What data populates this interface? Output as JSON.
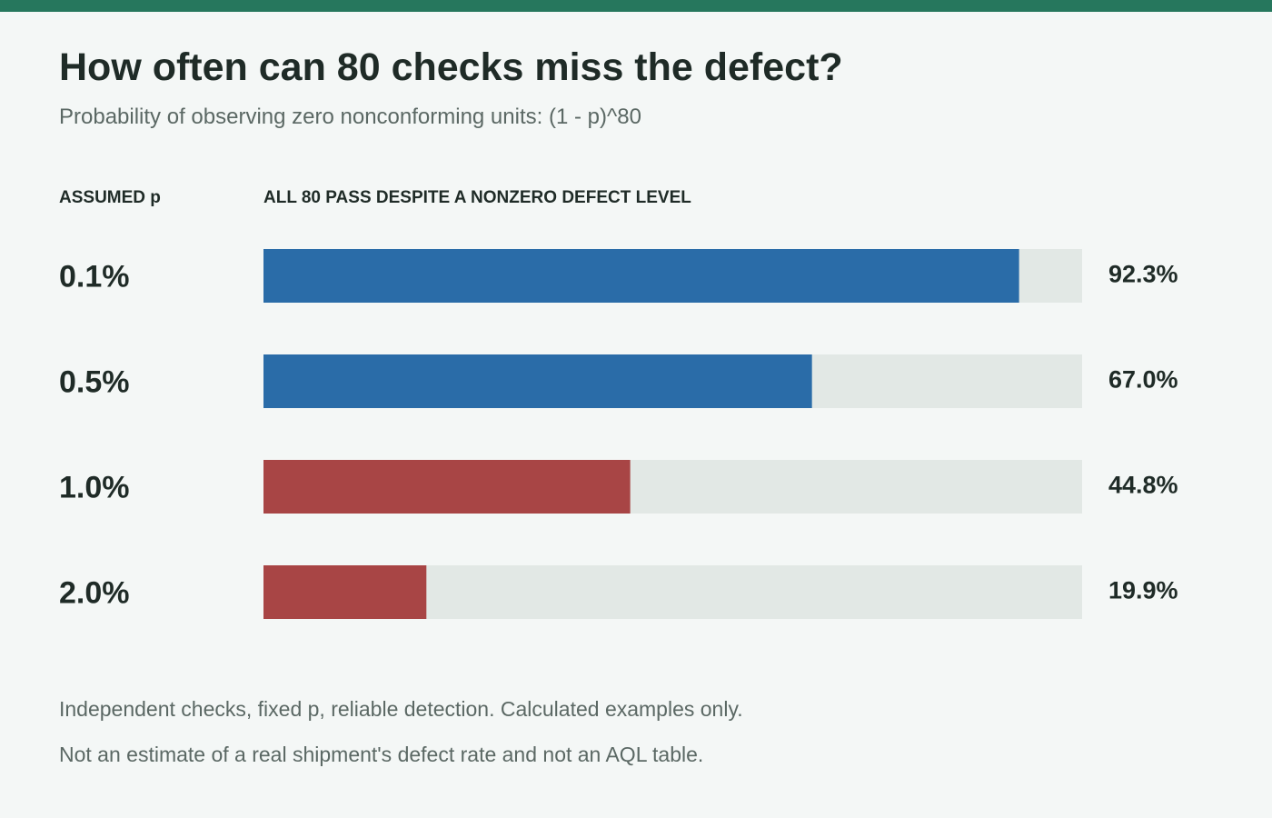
{
  "title": "How often can 80 checks miss the defect?",
  "subtitle": "Probability of observing zero nonconforming units: (1 - p)^80",
  "headers": {
    "left": "ASSUMED p",
    "right": "ALL 80 PASS DESPITE A NONZERO DEFECT LEVEL"
  },
  "notes": [
    "Independent checks, fixed p, reliable detection. Calculated examples only.",
    "Not an estimate of a real shipment's defect rate and not an AQL table."
  ],
  "colors": {
    "accent_band": "#26775d",
    "blue": "#2a6ca8",
    "red": "#a84545",
    "track": "#e2e8e5",
    "background": "#f4f7f6"
  },
  "chart_data": {
    "type": "bar",
    "orientation": "horizontal",
    "categories": [
      "0.1%",
      "0.5%",
      "1.0%",
      "2.0%"
    ],
    "values": [
      92.3,
      67.0,
      44.8,
      19.9
    ],
    "value_labels": [
      "92.3%",
      "67.0%",
      "44.8%",
      "19.9%"
    ],
    "bar_colors": [
      "blue",
      "blue",
      "red",
      "red"
    ],
    "xlim": [
      0,
      100
    ],
    "grid": false,
    "legend": "none"
  }
}
